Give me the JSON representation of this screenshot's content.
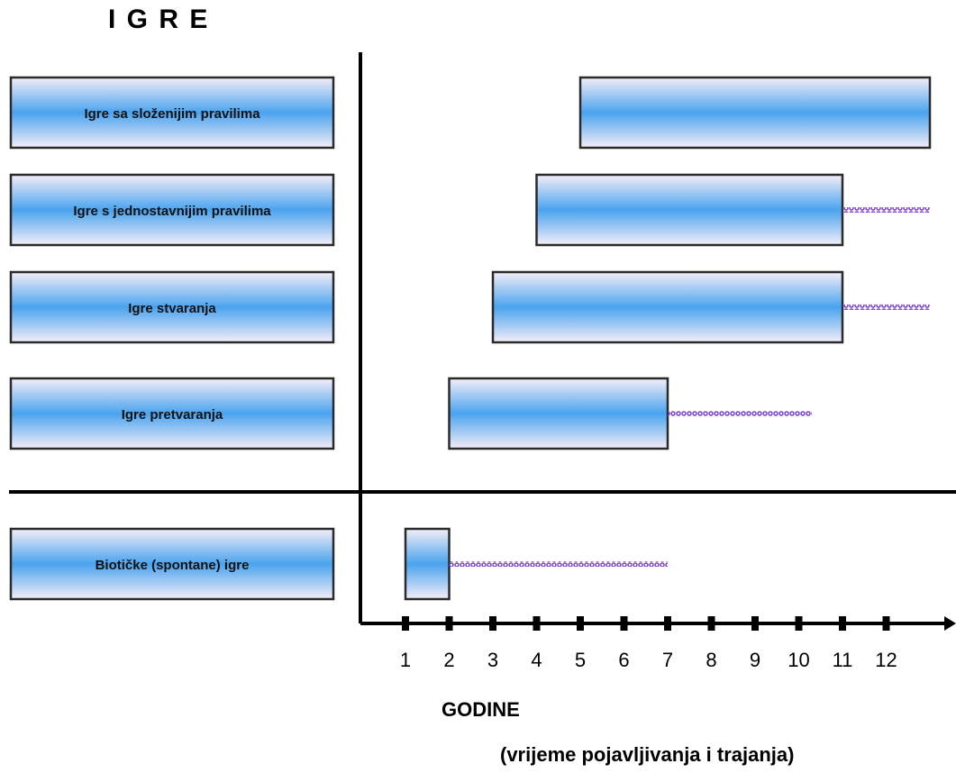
{
  "title": "I G R E",
  "x_axis": {
    "ticks": [
      1,
      2,
      3,
      4,
      5,
      6,
      7,
      8,
      9,
      10,
      11,
      12
    ],
    "label": "GODINE",
    "sublabel": "(vrijeme pojavljivanja i trajanja)"
  },
  "chart_data": {
    "type": "bar",
    "orientation": "horizontal-range",
    "xlim": [
      1,
      13
    ],
    "groups": [
      {
        "items": [
          {
            "label": "Igre sa složenijim pravilima",
            "start": 5,
            "end": 13,
            "tail_end": null
          },
          {
            "label": "Igre s jednostavnijim pravilima",
            "start": 4,
            "end": 11,
            "tail_end": 13
          },
          {
            "label": "Igre stvaranja",
            "start": 3,
            "end": 11,
            "tail_end": 13
          },
          {
            "label": "Igre pretvaranja",
            "start": 2,
            "end": 7,
            "tail_end": 10.3
          }
        ]
      },
      {
        "items": [
          {
            "label": "Biotičke (spontane) igre",
            "start": 1,
            "end": 2,
            "tail_end": 7
          }
        ]
      }
    ]
  },
  "colors": {
    "bar_gradient_outer": "#4aa3ee",
    "bar_gradient_inner": "#f4eef8",
    "tail": "#7a3fd1",
    "axis": "#000000",
    "box_border": "#2a2a2a"
  }
}
